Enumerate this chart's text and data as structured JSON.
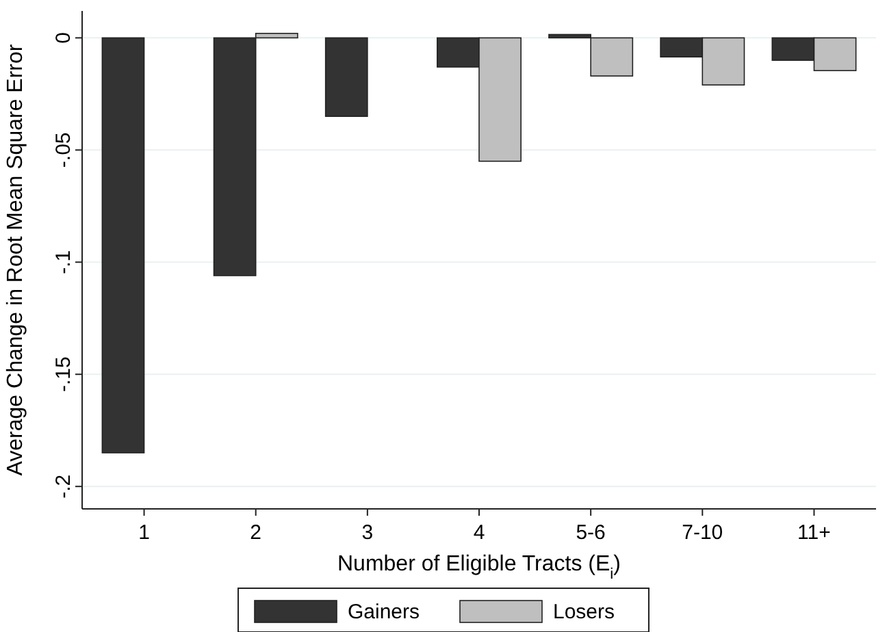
{
  "chart_data": {
    "type": "bar",
    "xlabel": "Number of Eligible Tracts (E$_{i}$)",
    "ylabel": "Average Change in Root Mean Square Error",
    "categories": [
      "1",
      "2",
      "3",
      "4",
      "5-6",
      "7-10",
      "11+"
    ],
    "series": [
      {
        "name": "Gainers",
        "color": "#333333",
        "values": [
          -0.185,
          -0.106,
          -0.035,
          -0.013,
          0.0015,
          -0.0085,
          -0.01
        ]
      },
      {
        "name": "Losers",
        "color": "#bfbfbf",
        "values": [
          0,
          0.002,
          0,
          -0.055,
          -0.017,
          -0.021,
          -0.0146
        ]
      }
    ],
    "ylim": [
      -0.21,
      0.012
    ],
    "yticks": [
      {
        "value": 0,
        "label": "0"
      },
      {
        "value": -0.05,
        "label": "-.05"
      },
      {
        "value": -0.1,
        "label": "-.1"
      },
      {
        "value": -0.15,
        "label": "-.15"
      },
      {
        "value": -0.2,
        "label": "-.2"
      }
    ],
    "grid": "y",
    "legend": "bottom"
  }
}
